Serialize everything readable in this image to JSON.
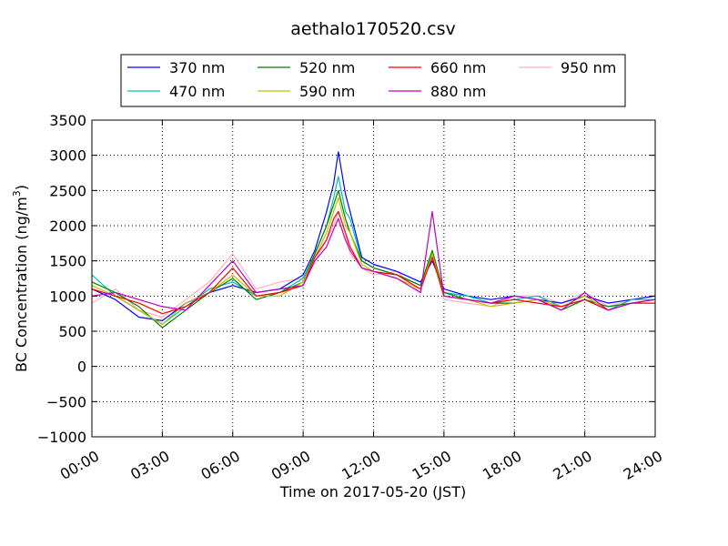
{
  "chart_data": {
    "type": "line",
    "title": "aethalo170520.csv",
    "xlabel": "Time on 2017-05-20 (JST)",
    "ylabel_main": "BC Concentration (ng/m",
    "ylabel_sup": "3",
    "ylabel_close": ")",
    "xlim": [
      0,
      24
    ],
    "ylim": [
      -1000,
      3500
    ],
    "grid": true,
    "legend_placement": "top-center",
    "x_tick_labels": [
      "00:00",
      "03:00",
      "06:00",
      "09:00",
      "12:00",
      "15:00",
      "18:00",
      "21:00",
      "24:00"
    ],
    "y_tick_labels": [
      "3500",
      "3000",
      "2500",
      "2000",
      "1500",
      "1000",
      "500",
      "0",
      "−500",
      "−1000"
    ],
    "x_ticks": [
      0,
      3,
      6,
      9,
      12,
      15,
      18,
      21,
      24
    ],
    "y_ticks": [
      3500,
      3000,
      2500,
      2000,
      1500,
      1000,
      500,
      0,
      -500,
      -1000
    ],
    "x": [
      0.0,
      1.0,
      2.0,
      3.0,
      4.0,
      5.0,
      6.0,
      7.0,
      8.0,
      9.0,
      9.5,
      10.0,
      10.3,
      10.5,
      10.8,
      11.0,
      11.5,
      12.0,
      13.0,
      14.0,
      14.5,
      15.0,
      16.0,
      17.0,
      18.0,
      19.0,
      20.0,
      21.0,
      22.0,
      23.0,
      24.0
    ],
    "series": [
      {
        "name": "370 nm",
        "color": "#0000ff",
        "values": [
          1100,
          950,
          700,
          650,
          900,
          1050,
          1150,
          1050,
          1100,
          1300,
          1650,
          2200,
          2600,
          3050,
          2450,
          2200,
          1550,
          1450,
          1350,
          1200,
          1500,
          1100,
          1000,
          950,
          1000,
          950,
          900,
          1000,
          900,
          950,
          1000
        ]
      },
      {
        "name": "470 nm",
        "color": "#00c0b0",
        "values": [
          1300,
          1000,
          800,
          600,
          850,
          1100,
          1200,
          1000,
          1050,
          1250,
          1600,
          2000,
          2400,
          2700,
          2200,
          2100,
          1500,
          1400,
          1300,
          1150,
          1600,
          1050,
          1000,
          900,
          950,
          1000,
          850,
          950,
          800,
          950,
          950
        ]
      },
      {
        "name": "520 nm",
        "color": "#008000",
        "values": [
          1200,
          1050,
          850,
          550,
          800,
          1050,
          1250,
          950,
          1050,
          1200,
          1600,
          2000,
          2300,
          2500,
          2100,
          1900,
          1500,
          1400,
          1300,
          1150,
          1650,
          1050,
          950,
          900,
          900,
          950,
          800,
          950,
          850,
          900,
          950
        ]
      },
      {
        "name": "590 nm",
        "color": "#c0c000",
        "values": [
          1150,
          1000,
          800,
          600,
          900,
          1050,
          1300,
          1000,
          1000,
          1200,
          1550,
          1900,
          2200,
          2400,
          2000,
          1900,
          1450,
          1350,
          1250,
          1100,
          1600,
          1000,
          950,
          850,
          900,
          950,
          850,
          1000,
          800,
          900,
          950
        ]
      },
      {
        "name": "660 nm",
        "color": "#ff0000",
        "values": [
          1100,
          1000,
          900,
          750,
          850,
          1050,
          1400,
          1000,
          1050,
          1150,
          1550,
          1800,
          2100,
          2200,
          1900,
          1700,
          1400,
          1350,
          1300,
          1100,
          1550,
          1000,
          950,
          900,
          950,
          900,
          850,
          950,
          800,
          900,
          900
        ]
      },
      {
        "name": "880 nm",
        "color": "#c000c0",
        "values": [
          1000,
          1050,
          950,
          850,
          800,
          1150,
          1500,
          1050,
          1100,
          1150,
          1500,
          1700,
          1950,
          2100,
          1800,
          1650,
          1400,
          1350,
          1250,
          1050,
          2200,
          1000,
          950,
          900,
          1000,
          950,
          800,
          1050,
          800,
          900,
          950
        ]
      },
      {
        "name": "950 nm",
        "color": "#ffb0c0",
        "values": [
          900,
          1100,
          800,
          700,
          950,
          1200,
          1600,
          1100,
          1200,
          1250,
          1500,
          1800,
          2000,
          2200,
          1900,
          1600,
          1400,
          1300,
          1350,
          1050,
          1600,
          950,
          900,
          850,
          1000,
          1000,
          900,
          1050,
          850,
          950,
          950
        ]
      }
    ]
  }
}
